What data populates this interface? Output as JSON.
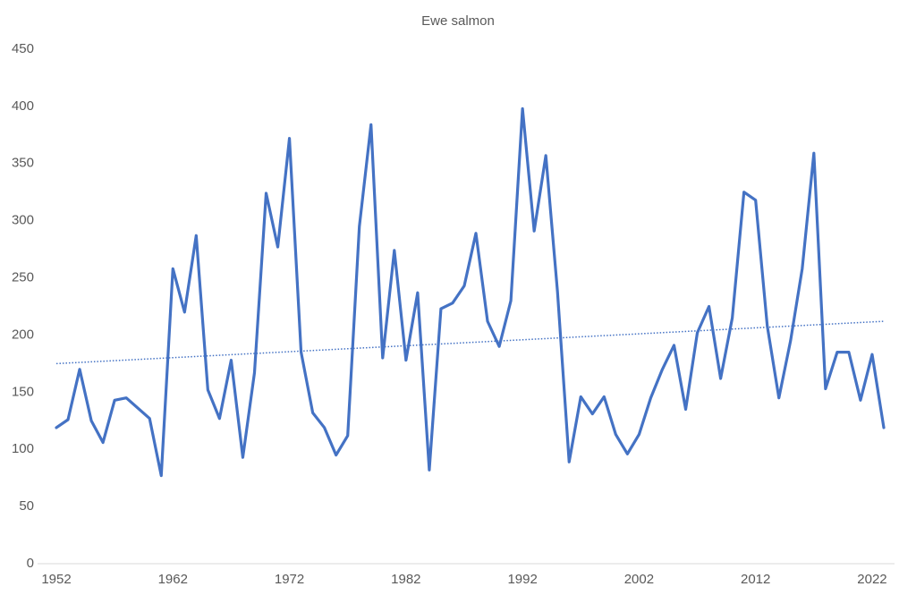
{
  "chart_data": {
    "type": "line",
    "title": "Ewe salmon",
    "x": [
      1952,
      1953,
      1954,
      1955,
      1956,
      1957,
      1958,
      1959,
      1960,
      1961,
      1962,
      1963,
      1964,
      1965,
      1966,
      1967,
      1968,
      1969,
      1970,
      1971,
      1972,
      1973,
      1974,
      1975,
      1976,
      1977,
      1978,
      1979,
      1980,
      1981,
      1982,
      1983,
      1984,
      1985,
      1986,
      1987,
      1988,
      1989,
      1990,
      1991,
      1992,
      1993,
      1994,
      1995,
      1996,
      1997,
      1998,
      1999,
      2000,
      2001,
      2002,
      2003,
      2004,
      2005,
      2006,
      2007,
      2008,
      2009,
      2010,
      2011,
      2012,
      2013,
      2014,
      2015,
      2016,
      2017,
      2018,
      2019,
      2020,
      2021,
      2022,
      2023
    ],
    "series": [
      {
        "color": "#4472c4",
        "values": [
          119,
          126,
          170,
          125,
          106,
          143,
          145,
          136,
          127,
          77,
          258,
          220,
          287,
          152,
          127,
          178,
          93,
          167,
          324,
          277,
          372,
          185,
          132,
          119,
          95,
          112,
          295,
          384,
          180,
          274,
          178,
          237,
          82,
          223,
          228,
          243,
          289,
          212,
          190,
          230,
          398,
          291,
          357,
          238,
          89,
          146,
          131,
          146,
          113,
          96,
          113,
          145,
          170,
          191,
          135,
          202,
          225,
          162,
          215,
          325,
          318,
          208,
          145,
          195,
          258,
          359,
          153,
          185,
          185,
          143,
          183,
          119
        ]
      }
    ],
    "trendline": {
      "color": "#4472c4",
      "values": [
        175,
        212
      ]
    },
    "xlim": [
      1952,
      2023
    ],
    "xticks": [
      1952,
      1962,
      1972,
      1982,
      1992,
      2002,
      2012,
      2022
    ],
    "ylim": [
      0,
      450
    ],
    "yticks": [
      0,
      50,
      100,
      150,
      200,
      250,
      300,
      350,
      400,
      450
    ],
    "grid": false
  }
}
